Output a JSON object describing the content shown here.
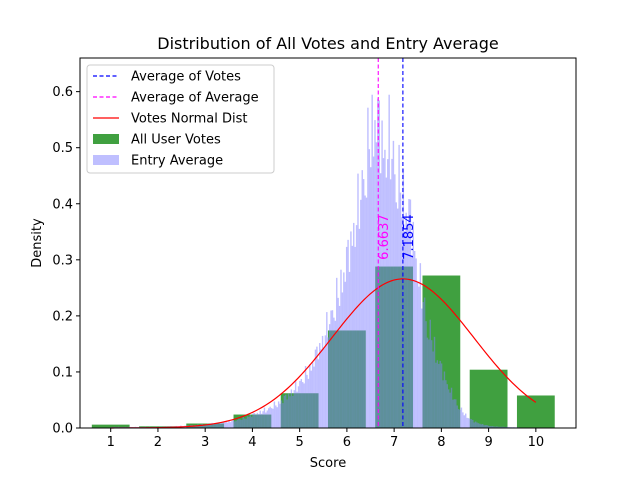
{
  "chart_data": {
    "type": "bar",
    "title": "Distribution of All Votes and Entry Average",
    "xlabel": "Score",
    "ylabel": "Density",
    "xlim": [
      0.35,
      10.85
    ],
    "ylim": [
      0,
      0.66
    ],
    "xticks": [
      "1",
      "2",
      "3",
      "4",
      "5",
      "6",
      "7",
      "8",
      "9",
      "10"
    ],
    "yticks": [
      "0.0",
      "0.1",
      "0.2",
      "0.3",
      "0.4",
      "0.5",
      "0.6"
    ],
    "legend_position": "top-left",
    "legend": [
      {
        "label": "Average of Votes",
        "style": "dashed-line",
        "color": "#0000ff"
      },
      {
        "label": "Average of Average",
        "style": "dashed-line",
        "color": "#ff00ff"
      },
      {
        "label": "Votes Normal Dist",
        "style": "line",
        "color": "#ff0000"
      },
      {
        "label": "All User Votes",
        "style": "patch",
        "color": "#008000"
      },
      {
        "label": "Entry Average",
        "style": "patch",
        "color": "#7f7fff"
      }
    ],
    "all_user_votes": {
      "color": "#008000",
      "bar_width": 0.8,
      "categories": [
        1,
        2,
        3,
        4,
        5,
        6,
        7,
        8,
        9,
        10
      ],
      "values": [
        0.006,
        0.003,
        0.008,
        0.024,
        0.062,
        0.174,
        0.288,
        0.272,
        0.104,
        0.058
      ]
    },
    "entry_average": {
      "color": "#7f7fff",
      "bin_width": 0.03,
      "profile_x": [
        1.0,
        2.0,
        2.5,
        3.0,
        3.5,
        3.8,
        4.0,
        4.3,
        4.6,
        4.9,
        5.2,
        5.5,
        5.8,
        6.0,
        6.2,
        6.4,
        6.5,
        6.6,
        6.7,
        6.8,
        6.9,
        7.0,
        7.1,
        7.2,
        7.35,
        7.5,
        7.7,
        7.9,
        8.1,
        8.3,
        8.5,
        8.7,
        8.9,
        9.1,
        9.4,
        9.7,
        10.0
      ],
      "profile_y": [
        0.002,
        0.002,
        0.004,
        0.007,
        0.012,
        0.018,
        0.025,
        0.035,
        0.05,
        0.075,
        0.11,
        0.17,
        0.25,
        0.32,
        0.4,
        0.5,
        0.56,
        0.6,
        0.57,
        0.52,
        0.55,
        0.5,
        0.47,
        0.44,
        0.4,
        0.3,
        0.2,
        0.14,
        0.09,
        0.05,
        0.025,
        0.012,
        0.006,
        0.003,
        0.002,
        0.001,
        0.0
      ]
    },
    "average_of_votes": {
      "x": 7.1854,
      "label": "7.1854",
      "color": "#0000ff"
    },
    "average_of_average": {
      "x": 6.6637,
      "label": "6.6637",
      "color": "#ff00ff"
    },
    "votes_normal_dist": {
      "mean": 7.1854,
      "std": 1.5,
      "x_range": [
        1,
        10
      ],
      "color": "#ff0000"
    }
  }
}
